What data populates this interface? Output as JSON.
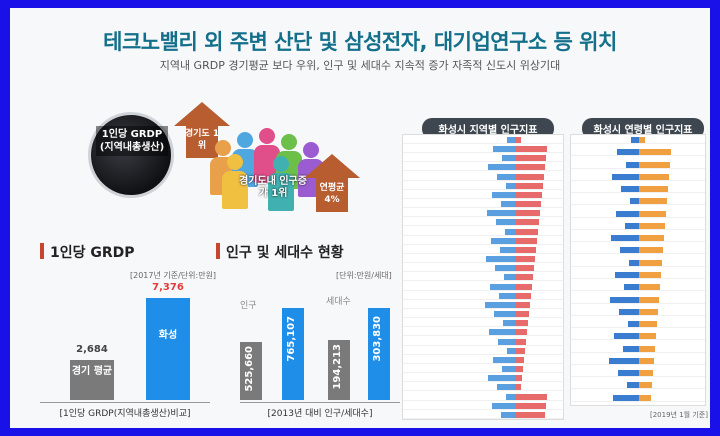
{
  "header": {
    "title": "테크노밸리 외 주변 산단 및 삼성전자, 대기업연구소 등 위치",
    "subtitle": "지역내 GRDP 경기평균 보다 우위, 인구 및 세대수 지속적 증가 자족적 신도시 위상기대"
  },
  "hero": {
    "coin_label": "1인당 GRDP (지역내총생산)",
    "arrow_left_label": "경기도 1위",
    "people_caption": "경기도내 인구증가 1위",
    "arrow_right_label": "연평균 4%"
  },
  "grdp": {
    "title": "1인당 GRDP",
    "note": "[2017년 기준/단위:만원]",
    "avg_value": "2,684",
    "avg_label": "경기 평균",
    "hs_value": "7,376",
    "hs_label": "화성",
    "footer": "[1인당 GRDP(지역내총생산)비교]",
    "avg_color": "#7a7a7a",
    "hs_color": "#1f8ee8",
    "hs_value_color": "#e23b3b"
  },
  "population": {
    "title": "인구 및 세대수 현황",
    "note": "[단위:만원/세대]",
    "pop_label": "인구",
    "hh_label": "세대수",
    "bars": [
      {
        "value": "525,660",
        "color": "#7a7a7a"
      },
      {
        "value": "765,107",
        "color": "#1f8ee8"
      },
      {
        "value": "194,213",
        "color": "#7a7a7a"
      },
      {
        "value": "303,830",
        "color": "#1f8ee8"
      }
    ],
    "footer": "[2013년 대비 인구/세대수]"
  },
  "tables": {
    "region_title": "화성시 지역별 인구지표",
    "age_title": "화성시 연령별 인구지표",
    "age_footer": "[2019년 1월 기준]",
    "region_bar_blue": "#5a9fe0",
    "region_bar_red": "#e76b6b",
    "age_bar_blue": "#3a7dd0",
    "age_bar_orange": "#f0a040"
  }
}
